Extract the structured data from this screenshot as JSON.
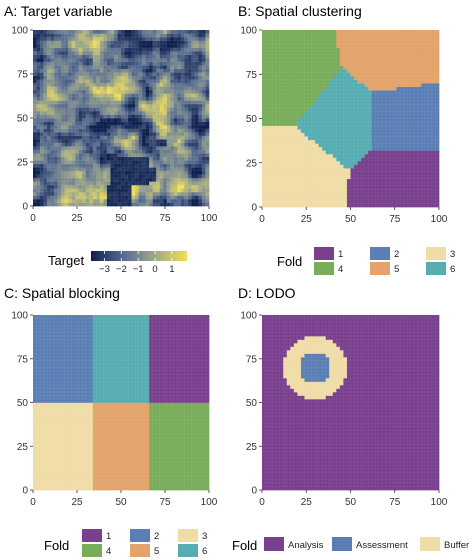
{
  "chart_data": [
    {
      "id": "target",
      "type": "heatmap",
      "title": "A: Target variable",
      "xlim": [
        0,
        100
      ],
      "ylim": [
        0,
        100
      ],
      "x_ticks": [
        0,
        25,
        50,
        75,
        100
      ],
      "y_ticks": [
        0,
        25,
        50,
        75,
        100
      ],
      "grid_cells": 50,
      "value_range": [
        -3.8,
        1.9
      ],
      "colorscale": [
        "#0d1f4d",
        "#5a6e92",
        "#9ba58a",
        "#f2df55"
      ],
      "low_region": [
        {
          "x0": 42,
          "x1": 56,
          "y0": 0,
          "y1": 12
        },
        {
          "x0": 44,
          "x1": 66,
          "y0": 12,
          "y1": 28
        },
        {
          "x0": 60,
          "x1": 70,
          "y0": 14,
          "y1": 22
        },
        {
          "x0": 70,
          "x1": 76,
          "y0": 34,
          "y1": 38
        }
      ],
      "legend": {
        "title": "Target",
        "ticks": [
          -3,
          -2,
          -1,
          0,
          1
        ],
        "tick_labels": [
          "−3",
          "−2",
          "−1",
          "0",
          "1"
        ]
      }
    },
    {
      "id": "clustering",
      "type": "heatmap",
      "title": "B: Spatial clustering",
      "xlim": [
        0,
        100
      ],
      "ylim": [
        0,
        100
      ],
      "x_ticks": [
        0,
        25,
        50,
        75,
        100
      ],
      "y_ticks": [
        0,
        25,
        50,
        75,
        100
      ],
      "grid_cells": 50,
      "fold_of": "nearest_center",
      "centers": [
        {
          "fold": "1",
          "x": 78,
          "y": 15
        },
        {
          "fold": "2",
          "x": 78,
          "y": 49
        },
        {
          "fold": "3",
          "x": 20,
          "y": 18
        },
        {
          "fold": "4",
          "x": 17,
          "y": 74
        },
        {
          "fold": "5",
          "x": 73,
          "y": 85
        },
        {
          "fold": "6",
          "x": 46,
          "y": 50
        }
      ],
      "legend": {
        "title": "Fold",
        "items": [
          {
            "label": "1",
            "color": "#7a3f8e"
          },
          {
            "label": "2",
            "color": "#5b7fb5"
          },
          {
            "label": "3",
            "color": "#f0dca6"
          },
          {
            "label": "4",
            "color": "#78ad5a"
          },
          {
            "label": "5",
            "color": "#e3a36a"
          },
          {
            "label": "6",
            "color": "#55adb2"
          }
        ]
      }
    },
    {
      "id": "blocking",
      "type": "heatmap",
      "title": "C: Spatial blocking",
      "xlim": [
        0,
        100
      ],
      "ylim": [
        0,
        100
      ],
      "x_ticks": [
        0,
        25,
        50,
        75,
        100
      ],
      "y_ticks": [
        0,
        25,
        50,
        75,
        100
      ],
      "grid_cells": 50,
      "blocks": [
        {
          "fold": "2",
          "x0": 0,
          "x1": 34,
          "y0": 50,
          "y1": 100
        },
        {
          "fold": "6",
          "x0": 34,
          "x1": 66,
          "y0": 50,
          "y1": 100
        },
        {
          "fold": "1",
          "x0": 66,
          "x1": 100,
          "y0": 50,
          "y1": 100
        },
        {
          "fold": "3",
          "x0": 0,
          "x1": 34,
          "y0": 0,
          "y1": 50
        },
        {
          "fold": "5",
          "x0": 34,
          "x1": 66,
          "y0": 0,
          "y1": 50
        },
        {
          "fold": "4",
          "x0": 66,
          "x1": 100,
          "y0": 0,
          "y1": 50
        }
      ],
      "legend": {
        "title": "Fold",
        "items": [
          {
            "label": "1",
            "color": "#7a3f8e"
          },
          {
            "label": "2",
            "color": "#5b7fb5"
          },
          {
            "label": "3",
            "color": "#f0dca6"
          },
          {
            "label": "4",
            "color": "#78ad5a"
          },
          {
            "label": "5",
            "color": "#e3a36a"
          },
          {
            "label": "6",
            "color": "#55adb2"
          }
        ]
      }
    },
    {
      "id": "lodo",
      "type": "heatmap",
      "title": "D: LODO",
      "xlim": [
        0,
        100
      ],
      "ylim": [
        0,
        100
      ],
      "x_ticks": [
        0,
        25,
        50,
        75,
        100
      ],
      "y_ticks": [
        0,
        25,
        50,
        75,
        100
      ],
      "grid_cells": 50,
      "circle": {
        "cx": 30,
        "cy": 70,
        "assessment_radius": 9,
        "buffer_radius": 18
      },
      "legend": {
        "title": "Fold",
        "items": [
          {
            "label": "Analysis",
            "color": "#7a3f8e"
          },
          {
            "label": "Assessment",
            "color": "#5b7fb5"
          },
          {
            "label": "Buffer",
            "color": "#f0dca6"
          }
        ]
      }
    }
  ]
}
